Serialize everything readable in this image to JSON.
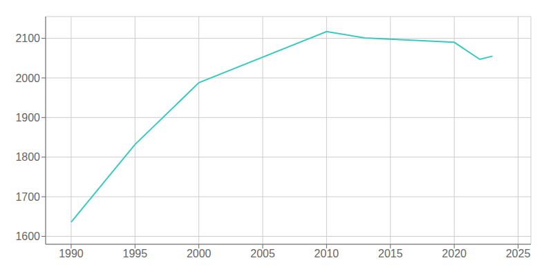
{
  "chart_data": {
    "type": "line",
    "x": [
      1990,
      1995,
      2000,
      2010,
      2013,
      2020,
      2022,
      2023
    ],
    "values": [
      1636,
      1832,
      1988,
      2117,
      2101,
      2090,
      2047,
      2055
    ],
    "color": "#38c9c0",
    "xlim": [
      1988,
      2026
    ],
    "ylim": [
      1580,
      2155
    ],
    "xticks": [
      1990,
      1995,
      2000,
      2005,
      2010,
      2015,
      2020,
      2025
    ],
    "yticks": [
      1600,
      1700,
      1800,
      1900,
      2000,
      2100
    ],
    "grid": true
  }
}
